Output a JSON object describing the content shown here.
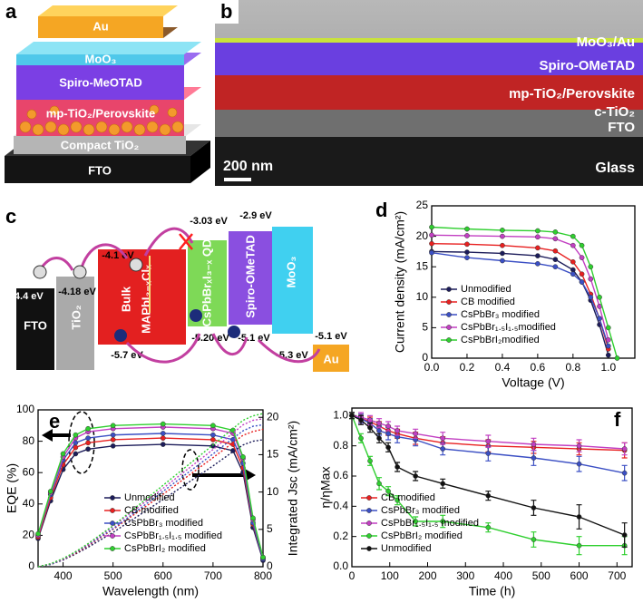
{
  "panel_a": {
    "letter": "a",
    "layers": [
      "Au",
      "MoO₃",
      "Spiro-MeOTAD",
      "mp-TiO₂/Perovskite",
      "Compact TiO₂",
      "FTO"
    ]
  },
  "panel_b": {
    "letter": "b",
    "layers": [
      "MoO₃/Au",
      "Spiro-OMeTAD",
      "mp-TiO₂/Perovskite",
      "c-TiO₂",
      "FTO",
      "Glass"
    ],
    "scale_bar": "200 nm"
  },
  "panel_c": {
    "letter": "c",
    "materials": [
      "FTO",
      "TiO₂",
      "Bulk",
      "MAPbI₃₋ₓClₓ",
      "CsPbBrₓI₃₋ₓ QD",
      "Spiro-OMeTAD",
      "MoO₃",
      "Au"
    ],
    "energies": [
      "-4.4 eV",
      "-4.18 eV",
      "-4.1 eV",
      "-3.03 eV",
      "-2.9 eV",
      "-5.7 eV",
      "-5.20 eV",
      "-5.1 eV",
      "-5.3 eV",
      "-5.1 eV"
    ]
  },
  "chart_data": [
    {
      "panel": "d",
      "type": "line",
      "xlabel": "Voltage (V)",
      "ylabel": "Current density (mA/cm²)",
      "x": [
        0,
        0.2,
        0.4,
        0.6,
        0.7,
        0.8,
        0.85,
        0.9,
        0.95,
        1.0,
        1.05
      ],
      "xlim": [
        0,
        1.15
      ],
      "xticks": [
        {
          "value": 0,
          "label": "0.0"
        },
        0.2,
        0.4,
        0.6,
        0.8,
        {
          "value": 1,
          "label": "1.0"
        }
      ],
      "ylim": [
        0,
        25
      ],
      "yticks": [
        0,
        5,
        10,
        15,
        20,
        25
      ],
      "markers": true,
      "legend": "lower left",
      "series": [
        {
          "name": "Unmodified",
          "color": "#1c1c5a",
          "values": [
            17.5,
            17.4,
            17.2,
            16.8,
            16.2,
            14.5,
            12.5,
            9.5,
            5.5,
            0.5,
            null
          ]
        },
        {
          "name": "CB modified",
          "color": "#e82020",
          "values": [
            18.8,
            18.7,
            18.5,
            18.1,
            17.6,
            15.8,
            13.8,
            10.5,
            6.5,
            1.5,
            null
          ]
        },
        {
          "name": "CsPbBr₃ modified",
          "color": "#3b4fc4",
          "values": [
            17.3,
            16.5,
            16.0,
            15.5,
            15.0,
            13.8,
            12.5,
            10.0,
            6.5,
            2.0,
            null
          ]
        },
        {
          "name": "CsPbBr₁.₅I₁.₅modified",
          "color": "#c23fc2",
          "values": [
            20.2,
            20.1,
            20.0,
            19.9,
            19.6,
            18.5,
            16.5,
            13.0,
            8.5,
            3.0,
            null
          ]
        },
        {
          "name": "CsPbBrI₂modified",
          "color": "#2fcf2f",
          "values": [
            21.5,
            21.2,
            21.0,
            20.9,
            20.7,
            20.0,
            18.5,
            15.0,
            10.0,
            5.0,
            0
          ]
        }
      ]
    },
    {
      "panel": "e",
      "type": "line",
      "xlabel": "Wavelength (nm)",
      "ylabel": "EQE (%)",
      "y2label": "Integrated Jsc (mA/cm²)",
      "x": [
        350,
        375,
        400,
        425,
        450,
        500,
        600,
        700,
        740,
        760,
        780,
        800
      ],
      "xlim": [
        350,
        800
      ],
      "xticks": [
        400,
        500,
        600,
        700,
        800
      ],
      "ylim": [
        0,
        100
      ],
      "yticks": [
        0,
        20,
        40,
        60,
        80,
        100
      ],
      "y2lim": [
        0,
        21
      ],
      "y2ticks": [
        0,
        5,
        10,
        15,
        20
      ],
      "markers": true,
      "legend": "lower right",
      "series": [
        {
          "name": "Unmodified",
          "color": "#1c1c5a",
          "values": [
            18,
            42,
            62,
            72,
            75,
            77,
            78,
            77,
            74,
            60,
            25,
            4
          ]
        },
        {
          "name": "CB modified",
          "color": "#e82020",
          "values": [
            19,
            44,
            65,
            76,
            79,
            81,
            82,
            81,
            78,
            63,
            27,
            5
          ]
        },
        {
          "name": "CsPbBr₃ modified",
          "color": "#3b4fc4",
          "values": [
            20,
            46,
            68,
            79,
            82,
            84,
            85,
            84,
            81,
            66,
            28,
            5
          ]
        },
        {
          "name": "CsPbBr₁.₅I₁.₅ modified",
          "color": "#c23fc2",
          "values": [
            20,
            47,
            70,
            82,
            86,
            88,
            89,
            88,
            85,
            69,
            30,
            6
          ]
        },
        {
          "name": "CsPbBrI₂ modified",
          "color": "#2fcf2f",
          "values": [
            21,
            48,
            72,
            84,
            88,
            90,
            91,
            90,
            87,
            70,
            31,
            6
          ]
        },
        {
          "axis": "y2",
          "style": "dotted",
          "color": "#1c1c5a",
          "values": [
            0,
            0.3,
            0.9,
            1.7,
            2.6,
            4.6,
            9.0,
            13.5,
            15.4,
            16.3,
            16.8,
            17.0
          ]
        },
        {
          "axis": "y2",
          "style": "dotted",
          "color": "#e82020",
          "values": [
            0,
            0.3,
            1.0,
            1.8,
            2.8,
            5.0,
            9.7,
            14.6,
            16.6,
            17.6,
            18.1,
            18.4
          ]
        },
        {
          "axis": "y2",
          "style": "dotted",
          "color": "#3b4fc4",
          "values": [
            0,
            0.3,
            1.0,
            1.9,
            2.9,
            5.1,
            10.1,
            15.1,
            17.2,
            18.2,
            18.8,
            19.0
          ]
        },
        {
          "axis": "y2",
          "style": "dotted",
          "color": "#c23fc2",
          "values": [
            0,
            0.4,
            1.0,
            2.0,
            3.0,
            5.4,
            10.5,
            15.7,
            17.9,
            19.0,
            19.6,
            19.8
          ]
        },
        {
          "axis": "y2",
          "style": "dotted",
          "color": "#2fcf2f",
          "values": [
            0,
            0.4,
            1.1,
            2.0,
            3.1,
            5.5,
            10.9,
            16.3,
            18.5,
            19.6,
            20.2,
            20.5
          ]
        }
      ]
    },
    {
      "panel": "f",
      "type": "line",
      "xlabel": "Time (h)",
      "ylabel": "η/ηMax",
      "x": [
        0,
        24,
        48,
        72,
        96,
        120,
        168,
        240,
        360,
        480,
        600,
        720
      ],
      "xlim": [
        0,
        740
      ],
      "xticks": [
        0,
        100,
        200,
        300,
        400,
        500,
        600,
        700
      ],
      "ylim": [
        0,
        1.05
      ],
      "yticks": [
        {
          "value": 0,
          "label": "0.0"
        },
        0.2,
        0.4,
        0.6,
        0.8,
        {
          "value": 1,
          "label": "1.0"
        }
      ],
      "markers": true,
      "legend": "lower left",
      "series": [
        {
          "name": "CB modified",
          "color": "#e82020",
          "values": [
            1,
            0.98,
            0.96,
            0.93,
            0.9,
            0.88,
            0.85,
            0.82,
            0.8,
            0.79,
            0.78,
            0.77
          ],
          "errors": [
            0.02,
            0.03,
            0.03,
            0.03,
            0.03,
            0.03,
            0.04,
            0.04,
            0.04,
            0.04,
            0.04,
            0.05
          ]
        },
        {
          "name": "CsPbBr₃ modified",
          "color": "#3b4fc4",
          "values": [
            1,
            0.98,
            0.95,
            0.9,
            0.88,
            0.86,
            0.84,
            0.78,
            0.75,
            0.72,
            0.68,
            0.62
          ],
          "errors": [
            0.02,
            0.03,
            0.03,
            0.03,
            0.04,
            0.04,
            0.04,
            0.04,
            0.05,
            0.05,
            0.05,
            0.05
          ]
        },
        {
          "name": "CsPbBr₁.₅I₁.₅ modified",
          "color": "#c23fc2",
          "values": [
            1,
            0.99,
            0.97,
            0.95,
            0.93,
            0.9,
            0.88,
            0.85,
            0.83,
            0.81,
            0.8,
            0.78
          ],
          "errors": [
            0.02,
            0.03,
            0.03,
            0.03,
            0.03,
            0.03,
            0.03,
            0.04,
            0.04,
            0.04,
            0.04,
            0.04
          ]
        },
        {
          "name": "CsPbBrI₂ modified",
          "color": "#2fcf2f",
          "values": [
            1,
            0.85,
            0.7,
            0.55,
            0.5,
            0.44,
            0.3,
            0.3,
            0.26,
            0.18,
            0.14,
            0.14
          ],
          "errors": [
            0.02,
            0.03,
            0.03,
            0.04,
            0.03,
            0.03,
            0.03,
            0.04,
            0.03,
            0.05,
            0.06,
            0.06
          ]
        },
        {
          "name": "Unmodified",
          "color": "#111111",
          "values": [
            1,
            0.97,
            0.92,
            0.85,
            0.79,
            0.66,
            0.6,
            0.55,
            0.47,
            0.39,
            0.33,
            0.21
          ],
          "errors": [
            0.02,
            0.03,
            0.03,
            0.03,
            0.03,
            0.03,
            0.03,
            0.03,
            0.03,
            0.05,
            0.08,
            0.08
          ]
        }
      ]
    }
  ]
}
